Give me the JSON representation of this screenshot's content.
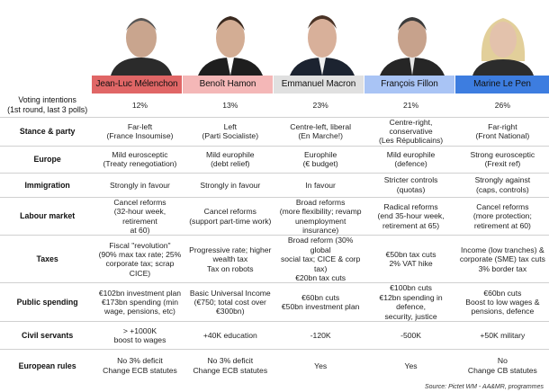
{
  "candidates": [
    {
      "name": "Jean-Luc Mélenchon",
      "color": "#e06666"
    },
    {
      "name": "Benoît Hamon",
      "color": "#f4b7b7"
    },
    {
      "name": "Emmanuel Macron",
      "color": "#e0e0e0"
    },
    {
      "name": "François Fillon",
      "color": "#a9c4f5"
    },
    {
      "name": "Marine Le Pen",
      "color": "#3d7de0"
    }
  ],
  "rows": [
    {
      "label": "Voting intentions\n(1st round, last 3 polls)",
      "values": [
        "12%",
        "13%",
        "23%",
        "21%",
        "26%"
      ]
    },
    {
      "label": "Stance & party",
      "values": [
        "Far-left\n(France Insoumise)",
        "Left\n(Parti Socialiste)",
        "Centre-left, liberal\n(En Marche!)",
        "Centre-right, conservative\n(Les Républicains)",
        "Far-right\n(Front National)"
      ]
    },
    {
      "label": "Europe",
      "values": [
        "Mild eurosceptic\n(Treaty renegotiation)",
        "Mild europhile\n(debt relief)",
        "Europhile\n(€ budget)",
        "Mild europhile\n(defence)",
        "Strong eurosceptic\n(Frexit ref)"
      ]
    },
    {
      "label": "Immigration",
      "values": [
        "Strongly in favour",
        "Strongly in favour",
        "In favour",
        "Stricter controls\n(quotas)",
        "Strongly against\n(caps, controls)"
      ]
    },
    {
      "label": "Labour market",
      "values": [
        "Cancel reforms\n(32-hour week, retirement\nat 60)",
        "Cancel reforms\n(support part-time work)",
        "Broad reforms\n(more flexibility; revamp\nunemployment insurance)",
        "Radical reforms\n(end 35-hour week,\nretirement at 65)",
        "Cancel reforms\n(more protection;\nretirement at 60)"
      ]
    },
    {
      "label": "Taxes",
      "values": [
        "Fiscal \"revolution\"\n(90% max tax rate; 25%\ncorporate tax; scrap CICE)",
        "Progressive rate; higher\nwealth tax\nTax on robots",
        "Broad reform (30% global\nsocial tax; CICE & corp tax)\n€20bn tax cuts",
        "€50bn tax cuts\n2% VAT hike",
        "Income (low tranches) &\ncorporate (SME) tax cuts\n3% border tax"
      ]
    },
    {
      "label": "Public spending",
      "values": [
        "€102bn investment plan\n€173bn spending (min\nwage, pensions, etc)",
        "Basic Universal Income\n(€750; total cost over\n€300bn)",
        "€60bn cuts\n€50bn investment plan",
        "€100bn cuts\n€12bn spending in defence,\nsecurity, justice",
        "€60bn cuts\nBoost to low wages &\npensions, defence"
      ]
    },
    {
      "label": "Civil servants",
      "values": [
        "> +1000K\nboost to wages",
        "+40K education",
        "-120K",
        "-500K",
        "+50K military"
      ]
    },
    {
      "label": "European rules",
      "values": [
        "No 3% deficit\nChange ECB statutes",
        "No 3% deficit\nChange ECB statutes",
        "Yes",
        "Yes",
        "No\nChange CB statutes"
      ]
    }
  ],
  "source": "Source: Pictet WM - AA&MR, programmes"
}
